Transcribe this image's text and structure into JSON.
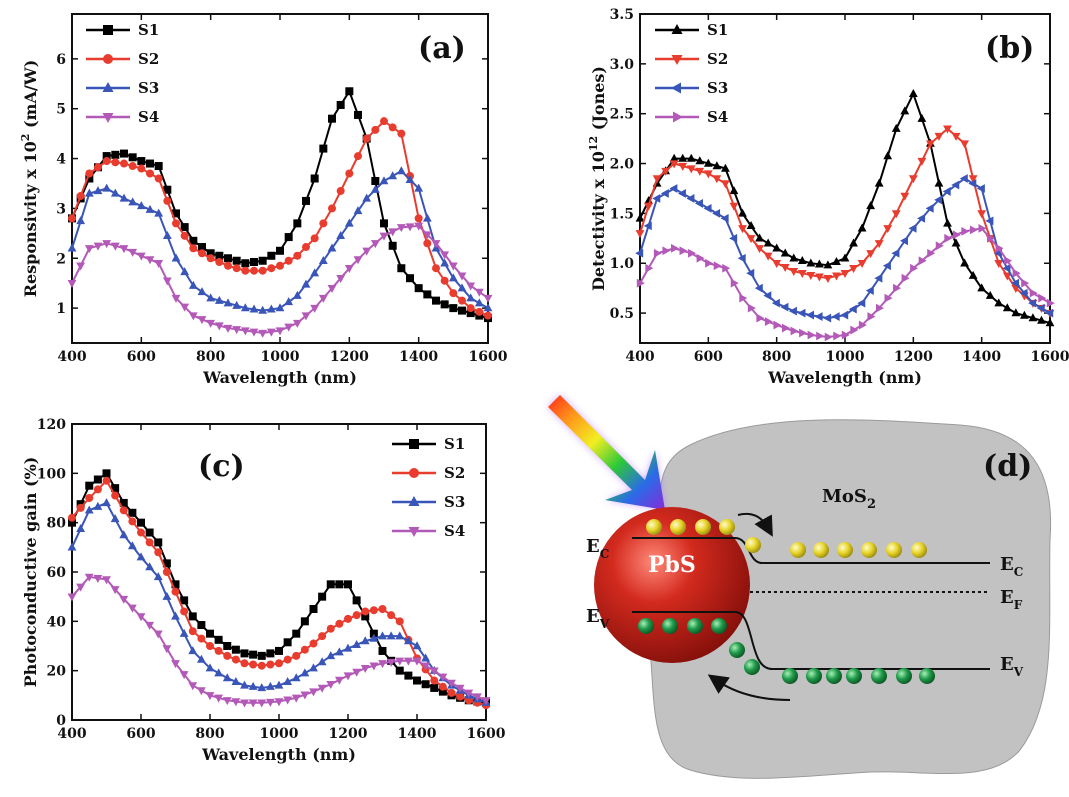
{
  "charts": [
    {
      "id": "a",
      "chart_data": {
        "type": "line",
        "panel_label": "(a)",
        "xlabel": "Wavelength (nm)",
        "ylabel_main": "Responsivity x 10",
        "ylabel_sup": "2",
        "ylabel_tail": " (mA/W)",
        "xlim": [
          400,
          1600
        ],
        "ylim": [
          0.3,
          6.9
        ],
        "xticks": [
          400,
          600,
          800,
          1000,
          1200,
          1400,
          1600
        ],
        "yticks": [
          1,
          2,
          3,
          4,
          5,
          6
        ],
        "legend_position": "top-left",
        "x": [
          400,
          450,
          500,
          550,
          600,
          650,
          700,
          750,
          800,
          850,
          900,
          950,
          1000,
          1050,
          1100,
          1150,
          1200,
          1250,
          1300,
          1350,
          1400,
          1450,
          1500,
          1550,
          1600
        ],
        "series": [
          {
            "name": "S1",
            "color": "#000000",
            "marker": "square",
            "values": [
              2.8,
              3.6,
              4.05,
              4.1,
              3.95,
              3.85,
              2.9,
              2.35,
              2.1,
              2.0,
              1.9,
              1.95,
              2.15,
              2.7,
              3.6,
              4.8,
              5.35,
              4.4,
              2.7,
              1.8,
              1.4,
              1.15,
              1.0,
              0.9,
              0.8
            ]
          },
          {
            "name": "S2",
            "color": "#e83c2f",
            "marker": "circle",
            "values": [
              2.8,
              3.7,
              3.95,
              3.9,
              3.8,
              3.6,
              2.7,
              2.2,
              2.0,
              1.85,
              1.75,
              1.75,
              1.85,
              2.05,
              2.4,
              3.0,
              3.7,
              4.4,
              4.75,
              4.5,
              2.8,
              1.8,
              1.3,
              1.0,
              0.85
            ]
          },
          {
            "name": "S3",
            "color": "#3a55b8",
            "marker": "triangle-up",
            "values": [
              2.2,
              3.3,
              3.4,
              3.2,
              3.05,
              2.9,
              2.0,
              1.45,
              1.2,
              1.1,
              1.0,
              0.95,
              1.0,
              1.25,
              1.7,
              2.2,
              2.7,
              3.2,
              3.55,
              3.75,
              3.4,
              2.2,
              1.6,
              1.2,
              1.0
            ]
          },
          {
            "name": "S4",
            "color": "#b35ab8",
            "marker": "triangle-down",
            "values": [
              1.5,
              2.2,
              2.3,
              2.2,
              2.05,
              1.9,
              1.2,
              0.85,
              0.7,
              0.6,
              0.55,
              0.5,
              0.55,
              0.7,
              1.0,
              1.4,
              1.8,
              2.15,
              2.45,
              2.62,
              2.65,
              2.3,
              1.85,
              1.45,
              1.2
            ]
          }
        ]
      }
    },
    {
      "id": "b",
      "chart_data": {
        "type": "line",
        "panel_label": "(b)",
        "xlabel": "Wavelength (nm)",
        "ylabel_main": "Detectivity x 10",
        "ylabel_sup": "12",
        "ylabel_tail": " (Jones)",
        "xlim": [
          400,
          1600
        ],
        "ylim": [
          0.2,
          3.5
        ],
        "xticks": [
          400,
          600,
          800,
          1000,
          1200,
          1400,
          1600
        ],
        "yticks": [
          0.5,
          1.0,
          1.5,
          2.0,
          2.5,
          3.0,
          3.5
        ],
        "ytick_decimals": 1,
        "legend_position": "top-left",
        "x": [
          400,
          450,
          500,
          550,
          600,
          650,
          700,
          750,
          800,
          850,
          900,
          950,
          1000,
          1050,
          1100,
          1150,
          1200,
          1250,
          1300,
          1350,
          1400,
          1450,
          1500,
          1550,
          1600
        ],
        "series": [
          {
            "name": "S1",
            "color": "#000000",
            "marker": "triangle-up",
            "values": [
              1.45,
              1.8,
              2.05,
              2.05,
              2.0,
              1.95,
              1.5,
              1.25,
              1.15,
              1.05,
              1.0,
              0.98,
              1.05,
              1.35,
              1.8,
              2.35,
              2.7,
              2.2,
              1.4,
              1.0,
              0.75,
              0.6,
              0.5,
              0.45,
              0.4
            ]
          },
          {
            "name": "S2",
            "color": "#e83c2f",
            "marker": "triangle-down",
            "values": [
              1.3,
              1.85,
              2.0,
              1.95,
              1.9,
              1.8,
              1.35,
              1.15,
              1.0,
              0.92,
              0.88,
              0.85,
              0.9,
              1.0,
              1.2,
              1.5,
              1.85,
              2.2,
              2.35,
              2.2,
              1.5,
              1.0,
              0.75,
              0.6,
              0.5
            ]
          },
          {
            "name": "S3",
            "color": "#3a55b8",
            "marker": "triangle-left",
            "values": [
              1.1,
              1.65,
              1.75,
              1.65,
              1.55,
              1.45,
              1.05,
              0.75,
              0.6,
              0.52,
              0.48,
              0.45,
              0.48,
              0.6,
              0.85,
              1.1,
              1.35,
              1.55,
              1.72,
              1.85,
              1.75,
              1.1,
              0.8,
              0.6,
              0.5
            ]
          },
          {
            "name": "S4",
            "color": "#b35ab8",
            "marker": "triangle-right",
            "values": [
              0.8,
              1.1,
              1.15,
              1.1,
              1.0,
              0.95,
              0.65,
              0.45,
              0.38,
              0.32,
              0.28,
              0.26,
              0.28,
              0.38,
              0.55,
              0.75,
              0.95,
              1.1,
              1.25,
              1.32,
              1.35,
              1.15,
              0.9,
              0.7,
              0.6
            ]
          }
        ]
      }
    },
    {
      "id": "c",
      "chart_data": {
        "type": "line",
        "panel_label": "(c)",
        "xlabel": "Wavelength (nm)",
        "ylabel_main": "Photoconductive gain (%)",
        "ylabel_sup": "",
        "ylabel_tail": "",
        "xlim": [
          400,
          1600
        ],
        "ylim": [
          0,
          120
        ],
        "xticks": [
          400,
          600,
          800,
          1000,
          1200,
          1400,
          1600
        ],
        "yticks": [
          0,
          20,
          40,
          60,
          80,
          100,
          120
        ],
        "legend_position": "top-right",
        "x": [
          400,
          450,
          500,
          550,
          600,
          650,
          700,
          750,
          800,
          850,
          900,
          950,
          1000,
          1050,
          1100,
          1150,
          1200,
          1250,
          1300,
          1350,
          1400,
          1450,
          1500,
          1550,
          1600
        ],
        "series": [
          {
            "name": "S1",
            "color": "#000000",
            "marker": "square",
            "values": [
              80,
              95,
              100,
              88,
              80,
              72,
              55,
              42,
              35,
              30,
              27,
              26,
              28,
              35,
              45,
              55,
              55,
              42,
              28,
              20,
              16,
              13,
              10,
              8,
              7
            ]
          },
          {
            "name": "S2",
            "color": "#e83c2f",
            "marker": "circle",
            "values": [
              82,
              90,
              97,
              85,
              76,
              68,
              52,
              36,
              30,
              26,
              23,
              22,
              23,
              26,
              31,
              37,
              41,
              44,
              45,
              40,
              25,
              16,
              11,
              8,
              6
            ]
          },
          {
            "name": "S3",
            "color": "#3a55b8",
            "marker": "triangle-up",
            "values": [
              70,
              85,
              88,
              75,
              66,
              58,
              42,
              28,
              21,
              17,
              14,
              13,
              14,
              17,
              21,
              26,
              29,
              32,
              34,
              34,
              30,
              20,
              14,
              10,
              7
            ]
          },
          {
            "name": "S4",
            "color": "#b35ab8",
            "marker": "triangle-down",
            "values": [
              50,
              58,
              57,
              49,
              42,
              35,
              23,
              14,
              10,
              8,
              7,
              7,
              7.5,
              9,
              11.5,
              14.5,
              18,
              21,
              23,
              24,
              24,
              20,
              15,
              11,
              8
            ]
          }
        ]
      }
    }
  ],
  "diagram": {
    "panel_label": "(d)",
    "material": "MoS",
    "material_sub": "2",
    "particle": "PbS",
    "ec_left_main": "E",
    "ec_left_sub": "C",
    "ev_left_main": "E",
    "ev_left_sub": "V",
    "ec_right_main": "E",
    "ec_right_sub": "C",
    "ef_right_main": "E",
    "ef_right_sub": "F",
    "ev_right_main": "E",
    "ev_right_sub": "V",
    "colors": {
      "electron": "#e8d62a",
      "hole": "#1f9a4a",
      "sphere": "#c41c14",
      "cloud": "#c2c2c2"
    }
  }
}
